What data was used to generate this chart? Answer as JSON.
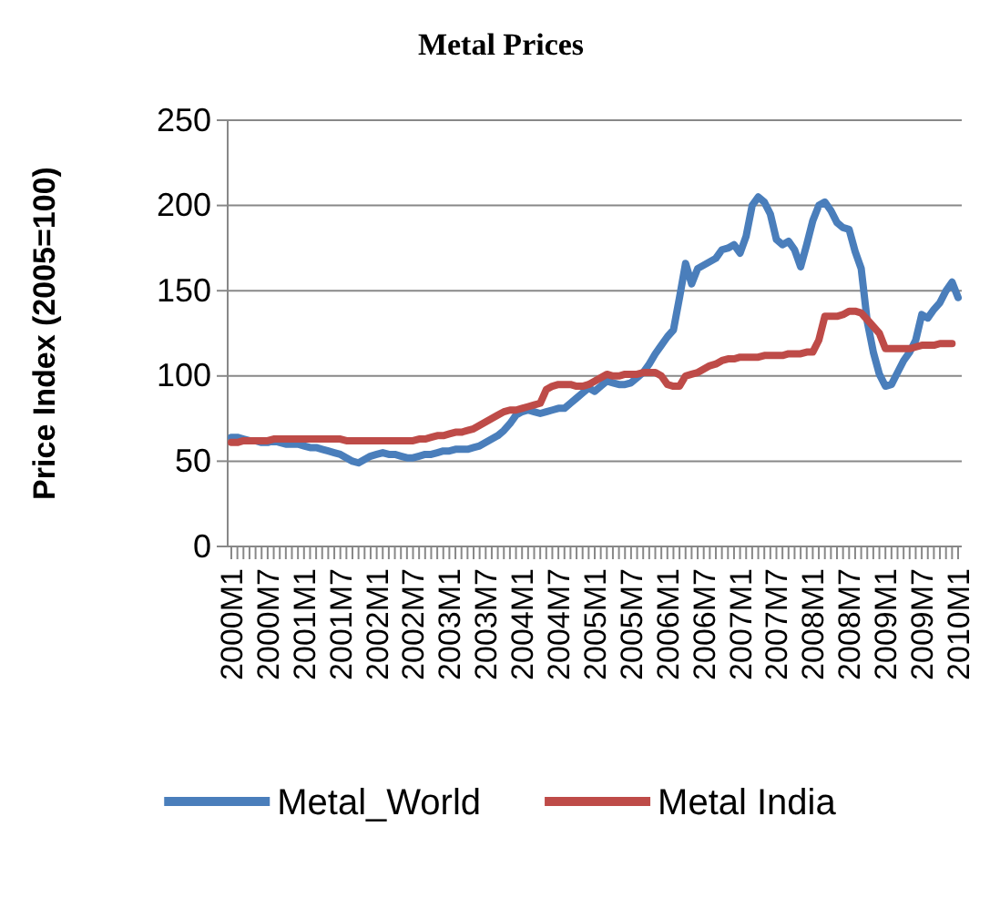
{
  "chart_data": {
    "type": "line",
    "title": "Metal Prices",
    "ylabel": "Price Index (2005=100)",
    "categories": [
      "2000M1",
      null,
      null,
      null,
      null,
      null,
      "2000M7",
      null,
      null,
      null,
      null,
      null,
      "2001M1",
      null,
      null,
      null,
      null,
      null,
      "2001M7",
      null,
      null,
      null,
      null,
      null,
      "2002M1",
      null,
      null,
      null,
      null,
      null,
      "2002M7",
      null,
      null,
      null,
      null,
      null,
      "2003M1",
      null,
      null,
      null,
      null,
      null,
      "2003M7",
      null,
      null,
      null,
      null,
      null,
      "2004M1",
      null,
      null,
      null,
      null,
      null,
      "2004M7",
      null,
      null,
      null,
      null,
      null,
      "2005M1",
      null,
      null,
      null,
      null,
      null,
      "2005M7",
      null,
      null,
      null,
      null,
      null,
      "2006M1",
      null,
      null,
      null,
      null,
      null,
      "2006M7",
      null,
      null,
      null,
      null,
      null,
      "2007M1",
      null,
      null,
      null,
      null,
      null,
      "2007M7",
      null,
      null,
      null,
      null,
      null,
      "2008M1",
      null,
      null,
      null,
      null,
      null,
      "2008M7",
      null,
      null,
      null,
      null,
      null,
      "2009M1",
      null,
      null,
      null,
      null,
      null,
      "2009M7",
      null,
      null,
      null,
      null,
      null,
      "2010M1"
    ],
    "series": [
      {
        "name": "Metal_World",
        "color": "#4a7ebb",
        "values": [
          64,
          64,
          63,
          62,
          62,
          61,
          61,
          62,
          61,
          60,
          60,
          60,
          59,
          58,
          58,
          57,
          56,
          55,
          54,
          52,
          50,
          49,
          51,
          53,
          54,
          55,
          54,
          54,
          53,
          52,
          52,
          53,
          54,
          54,
          55,
          56,
          56,
          57,
          57,
          57,
          58,
          59,
          61,
          63,
          65,
          68,
          72,
          77,
          79,
          80,
          79,
          78,
          79,
          80,
          81,
          81,
          84,
          87,
          90,
          93,
          91,
          94,
          97,
          96,
          95,
          95,
          96,
          99,
          102,
          107,
          113,
          118,
          123,
          127,
          146,
          166,
          154,
          163,
          165,
          167,
          169,
          174,
          175,
          177,
          172,
          182,
          200,
          205,
          202,
          195,
          180,
          177,
          179,
          174,
          164,
          177,
          191,
          200,
          202,
          197,
          190,
          187,
          186,
          173,
          163,
          132,
          114,
          101,
          94,
          95,
          102,
          109,
          114,
          121,
          136,
          134,
          139,
          143,
          150,
          155,
          146
        ]
      },
      {
        "name": "Metal India",
        "color": "#be4b48",
        "values": [
          61,
          61,
          62,
          62,
          62,
          62,
          62,
          63,
          63,
          63,
          63,
          63,
          63,
          63,
          63,
          63,
          63,
          63,
          63,
          62,
          62,
          62,
          62,
          62,
          62,
          62,
          62,
          62,
          62,
          62,
          62,
          63,
          63,
          64,
          65,
          65,
          66,
          67,
          67,
          68,
          69,
          71,
          73,
          75,
          77,
          79,
          80,
          80,
          81,
          82,
          83,
          84,
          92,
          94,
          95,
          95,
          95,
          94,
          94,
          95,
          97,
          99,
          101,
          100,
          100,
          101,
          101,
          101,
          102,
          102,
          102,
          100,
          95,
          94,
          94,
          100,
          101,
          102,
          104,
          106,
          107,
          109,
          110,
          110,
          111,
          111,
          111,
          111,
          112,
          112,
          112,
          112,
          113,
          113,
          113,
          114,
          114,
          121,
          135,
          135,
          135,
          136,
          138,
          138,
          137,
          133,
          129,
          125,
          116,
          116,
          116,
          116,
          116,
          117,
          118,
          118,
          118,
          119,
          119,
          119,
          null
        ]
      }
    ],
    "ylim": [
      0,
      250
    ],
    "yticks": [
      0,
      50,
      100,
      150,
      200,
      250
    ],
    "grid": "y",
    "legend": "bottom",
    "marker": "none",
    "line_style": "solid"
  }
}
